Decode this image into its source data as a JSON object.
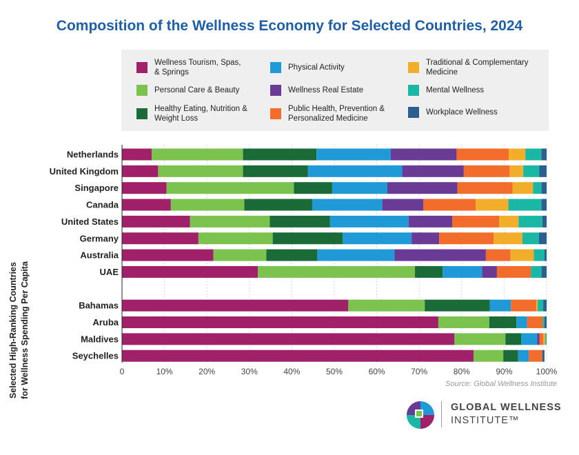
{
  "chart_data": {
    "type": "bar",
    "orientation": "horizontal",
    "stacked": true,
    "title": "Composition of the Wellness Economy for Selected Countries, 2024",
    "ylabel": "Selected High-Ranking Countries\nfor Wellness Spending Per Capita",
    "xlim": [
      0,
      100
    ],
    "x_ticks": [
      "0",
      "10%",
      "20%",
      "30%",
      "40%",
      "50%",
      "60%",
      "70%",
      "80%",
      "90%",
      "100%"
    ],
    "grid": "vertical dotted",
    "legend_position": "top",
    "source": "Source: Global Wellness Institute",
    "categories": [
      "Netherlands",
      "United Kingdom",
      "Singapore",
      "Canada",
      "United States",
      "Germany",
      "Australia",
      "UAE",
      "",
      "Bahamas",
      "Aruba",
      "Maldives",
      "Seychelles"
    ],
    "series": [
      {
        "name": "Wellness Tourism, Spas,\n& Springs",
        "color": "#a1206a",
        "values": [
          7,
          8.5,
          10.5,
          11.5,
          16,
          18,
          21.5,
          32,
          null,
          53.3,
          74.5,
          78.3,
          82.8
        ]
      },
      {
        "name": "Personal Care & Beauty",
        "color": "#7cc24f",
        "values": [
          21.5,
          20,
          30,
          17.3,
          18.8,
          17.5,
          12.5,
          37,
          null,
          18,
          12,
          12,
          7
        ]
      },
      {
        "name": "Healthy Eating, Nutrition &\nWeight Loss",
        "color": "#1a6b37",
        "values": [
          17.3,
          15.3,
          9,
          16,
          14.2,
          16.5,
          12,
          6.5,
          null,
          15.3,
          6.4,
          3.7,
          3.5
        ]
      },
      {
        "name": "Physical Activity",
        "color": "#1f9ad6",
        "values": [
          17.5,
          22.2,
          13,
          16.5,
          18.5,
          16.2,
          18.2,
          9.3,
          null,
          5,
          2.5,
          3.8,
          2.5
        ]
      },
      {
        "name": "Wellness Real Estate",
        "color": "#6a3b94",
        "values": [
          15.5,
          14.5,
          16.5,
          9.7,
          10.3,
          6.5,
          21.5,
          3.5,
          null,
          0,
          0,
          0.5,
          0
        ]
      },
      {
        "name": "Public Health, Prevention &\nPersonalized Medicine",
        "color": "#f26c2b",
        "values": [
          12.3,
          10.8,
          13,
          12.3,
          11,
          12.8,
          5.8,
          8,
          null,
          6,
          3.7,
          0.9,
          3.2
        ]
      },
      {
        "name": "Traditional & Complementary\nMedicine",
        "color": "#f2ae2a",
        "values": [
          3.9,
          3.2,
          4.8,
          7.7,
          4.6,
          6.8,
          5.5,
          0,
          null,
          0.3,
          0,
          0.5,
          0
        ]
      },
      {
        "name": "Mental Wellness",
        "color": "#1ab7a5",
        "values": [
          3.8,
          3.8,
          2,
          7.8,
          5.6,
          3.9,
          2.5,
          2.5,
          null,
          1.3,
          0.4,
          0.3,
          0
        ]
      },
      {
        "name": "Workplace Wellness",
        "color": "#2a5f8f",
        "values": [
          1.2,
          1.7,
          1.2,
          1.2,
          1,
          1.8,
          0.5,
          1.2,
          null,
          0.8,
          0.5,
          0,
          0.5
        ]
      }
    ]
  },
  "branding": {
    "logo_line1": "GLOBAL WELLNESS",
    "logo_line2": "INSTITUTE™"
  }
}
